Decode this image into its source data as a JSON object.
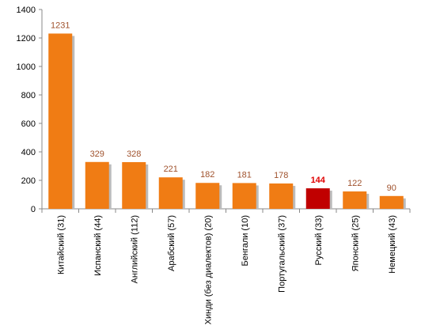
{
  "chart_data": {
    "type": "bar",
    "categories": [
      "Китайский (31)",
      "Испанский (44)",
      "Английский (112)",
      "Арабский (57)",
      "Хинди (без диалектов) (20)",
      "Бенгали (10)",
      "Португальский (37)",
      "Русский (33)",
      "Японский (25)",
      "Немецкий (43)"
    ],
    "values": [
      1231,
      329,
      328,
      221,
      182,
      181,
      178,
      144,
      122,
      90
    ],
    "colors": [
      "#f07c14",
      "#f07c14",
      "#f07c14",
      "#f07c14",
      "#f07c14",
      "#f07c14",
      "#f07c14",
      "#c00000",
      "#f07c14",
      "#f07c14"
    ],
    "value_label_colors": [
      "#a0522d",
      "#a0522d",
      "#a0522d",
      "#a0522d",
      "#a0522d",
      "#a0522d",
      "#a0522d",
      "#e00000",
      "#a0522d",
      "#a0522d"
    ],
    "ylim": [
      0,
      1400
    ],
    "yticks": [
      0,
      200,
      400,
      600,
      800,
      1000,
      1200,
      1400
    ],
    "grid": false
  }
}
